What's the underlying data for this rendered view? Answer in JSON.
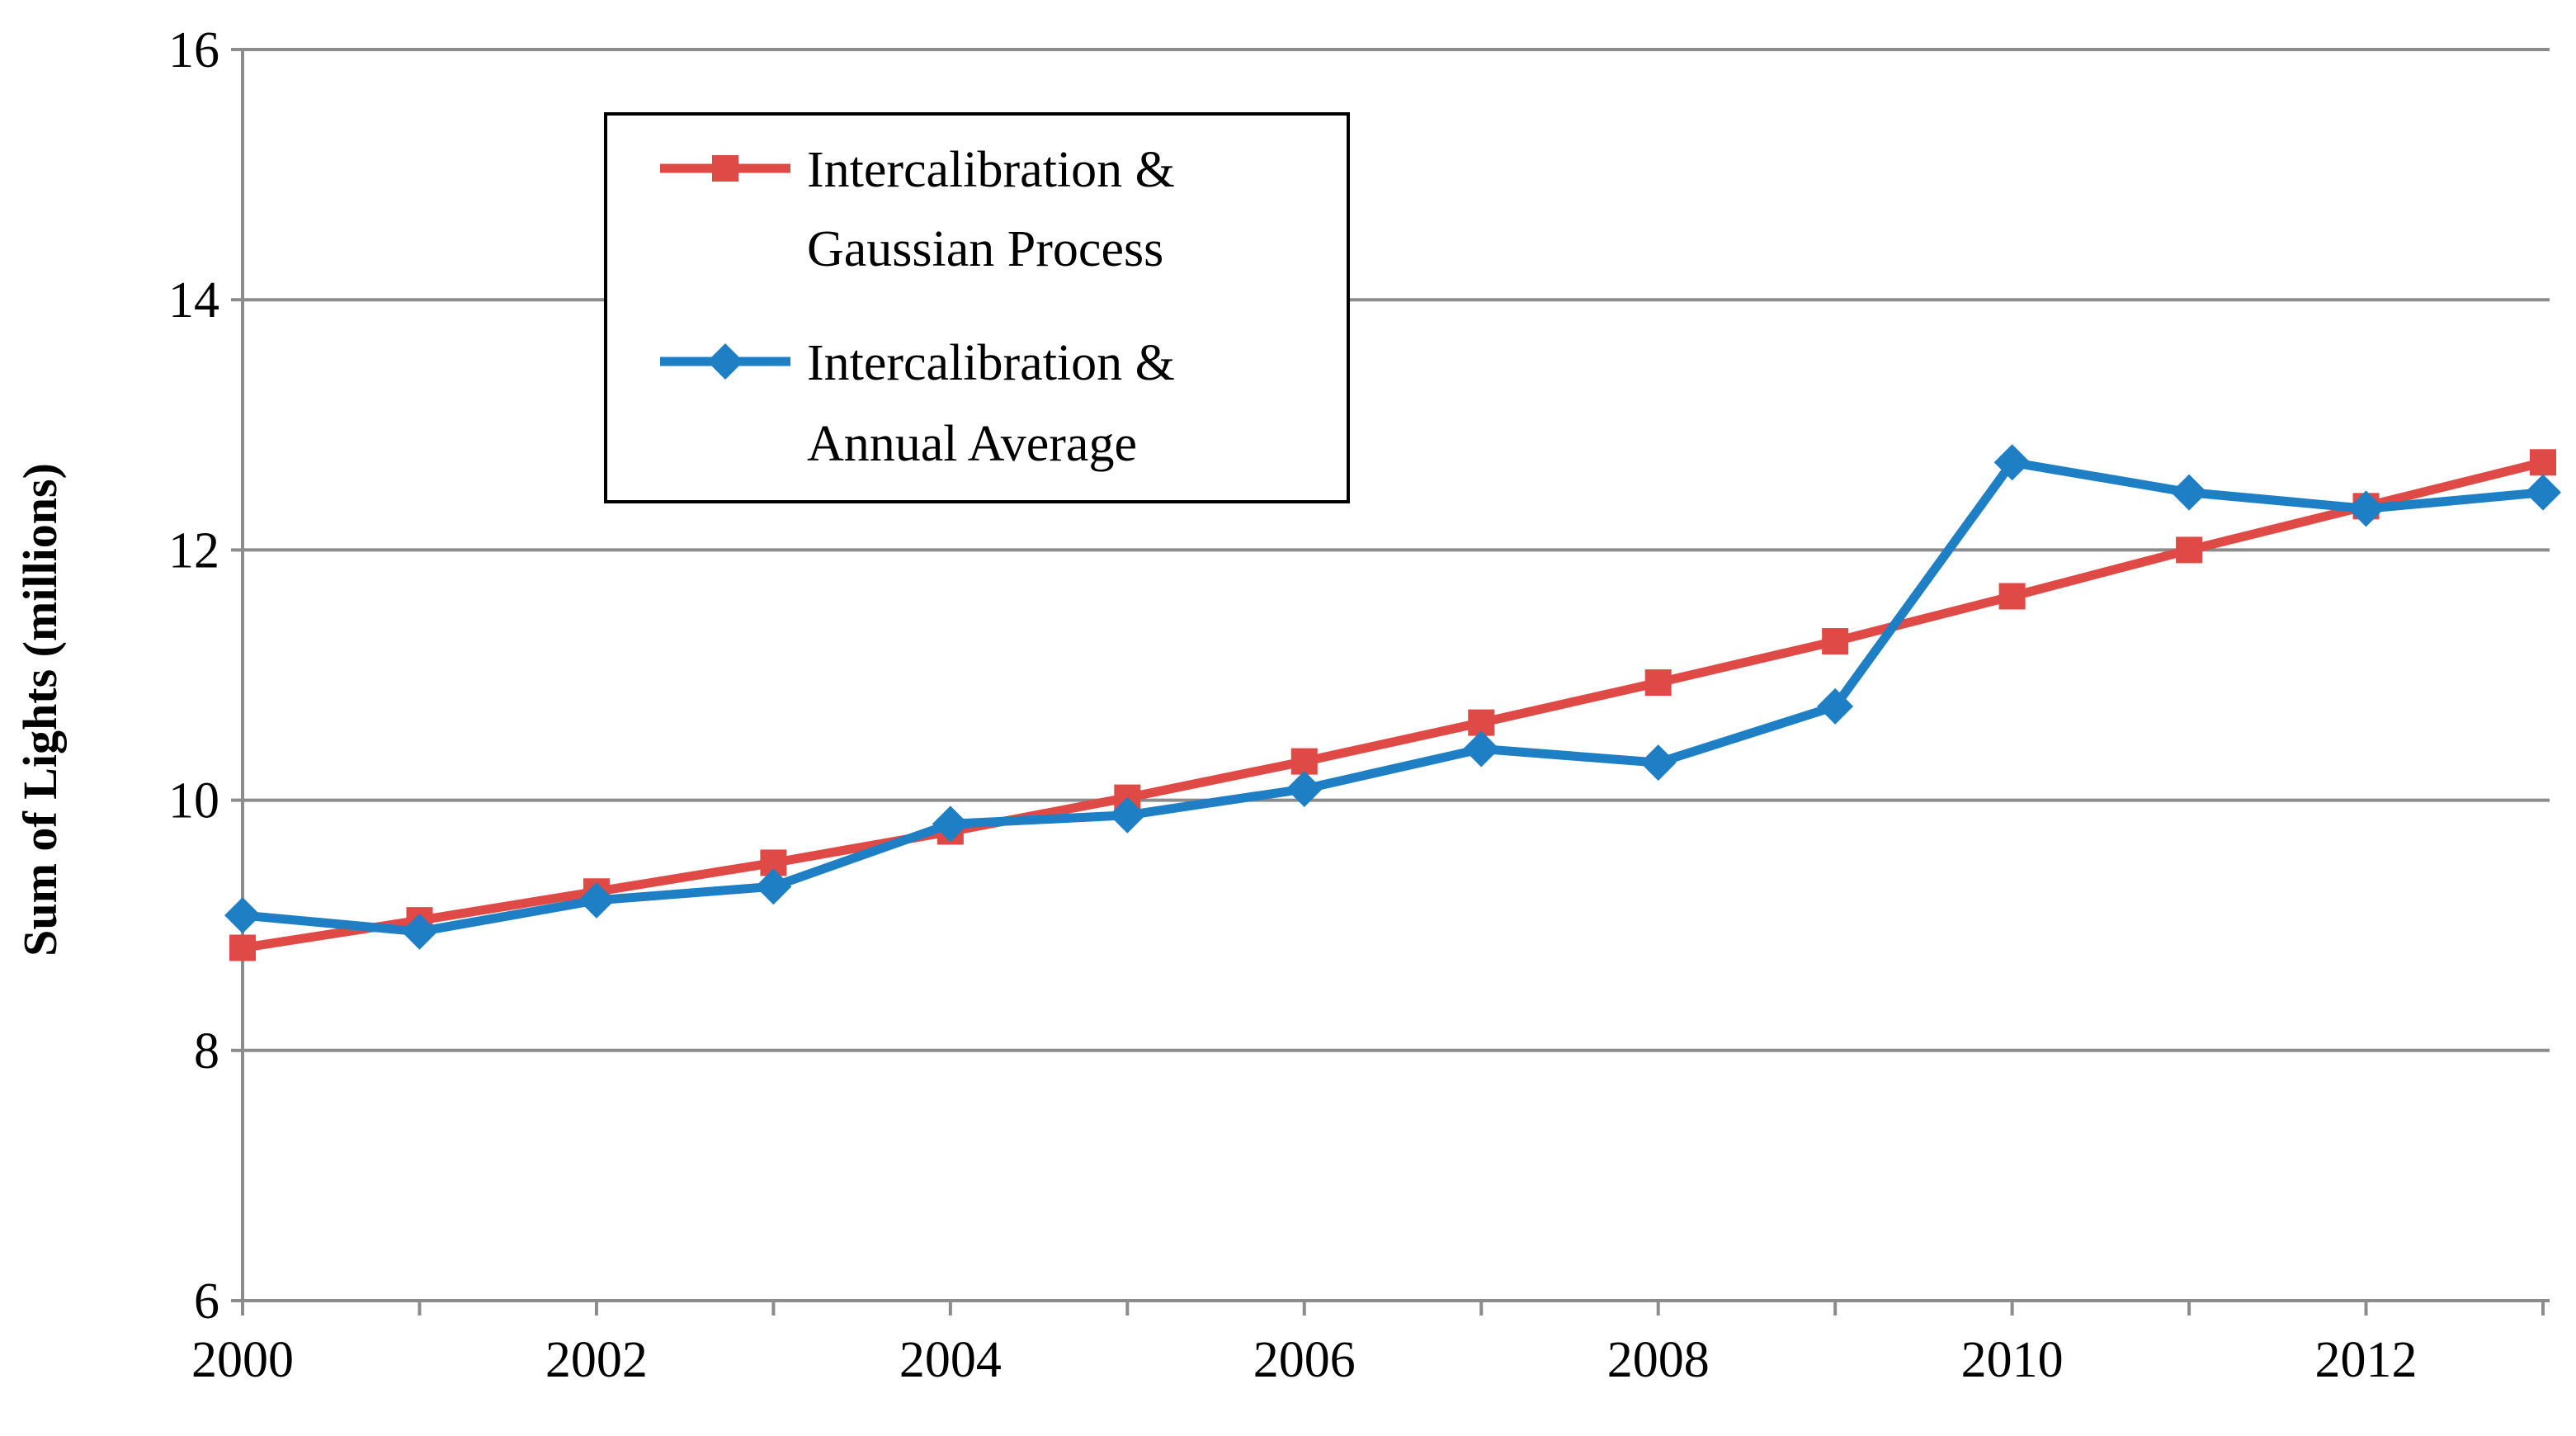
{
  "chart_data": {
    "type": "line",
    "title": "",
    "xlabel": "",
    "ylabel": "Sum of Lights (millions)",
    "x": [
      2000,
      2001,
      2002,
      2003,
      2004,
      2005,
      2006,
      2007,
      2008,
      2009,
      2010,
      2011,
      2012,
      2013
    ],
    "xlim": [
      2000,
      2013
    ],
    "ylim": [
      6,
      16
    ],
    "x_ticks": [
      "2000",
      "2002",
      "2004",
      "2006",
      "2008",
      "2010",
      "2012"
    ],
    "y_ticks": [
      "6",
      "8",
      "10",
      "12",
      "14",
      "16"
    ],
    "grid": "horizontal",
    "legend_position": "top-left",
    "series": [
      {
        "name": "Intercalibration & Gaussian Process",
        "legend_lines": [
          "Intercalibration &",
          "Gaussian Process"
        ],
        "color": "#e04a46",
        "marker": "square",
        "values": [
          8.82,
          9.04,
          9.27,
          9.5,
          9.75,
          10.02,
          10.31,
          10.62,
          10.94,
          11.27,
          11.63,
          12.0,
          12.35,
          12.7
        ]
      },
      {
        "name": "Intercalibration & Annual Average",
        "legend_lines": [
          "Intercalibration &",
          "Annual Average"
        ],
        "color": "#1e7fc4",
        "marker": "diamond",
        "values": [
          9.08,
          8.95,
          9.2,
          9.31,
          9.81,
          9.88,
          10.09,
          10.41,
          10.3,
          10.75,
          12.7,
          12.46,
          12.33,
          12.46
        ]
      }
    ]
  }
}
